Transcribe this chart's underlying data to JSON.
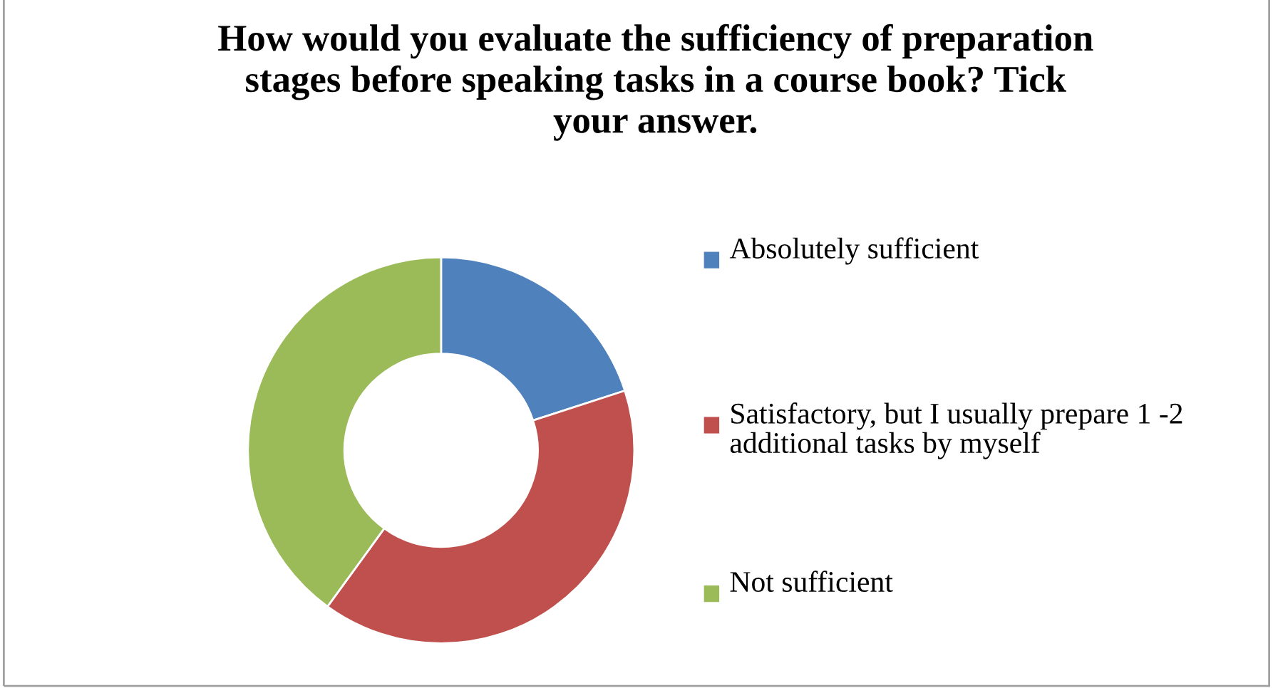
{
  "chart_data": {
    "type": "donut",
    "title": "How would you evaluate the sufficiency of preparation stages before speaking tasks in a course book? Tick your answer.",
    "categories": [
      "Absolutely sufficient",
      "Satisfactory, but I usually prepare 1 -2 additional tasks by myself",
      "Not sufficient"
    ],
    "values": [
      20,
      40,
      40
    ],
    "colors": [
      "#4f81bd",
      "#c0504d",
      "#9bbb59"
    ],
    "legend": "right"
  }
}
